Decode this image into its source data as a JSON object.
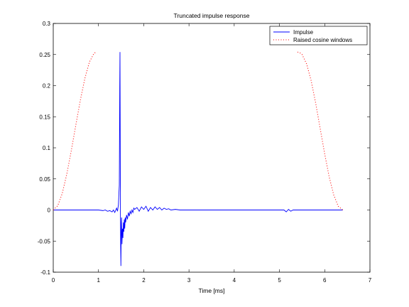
{
  "chart_data": {
    "type": "line",
    "title": "Truncated impulse response",
    "xlabel": "Time [ms]",
    "ylabel": "",
    "xlim": [
      0,
      7
    ],
    "ylim": [
      -0.1,
      0.3
    ],
    "xticks": [
      0,
      1,
      2,
      3,
      4,
      5,
      6,
      7
    ],
    "yticks": [
      -0.1,
      -0.05,
      0,
      0.05,
      0.1,
      0.15,
      0.2,
      0.25,
      0.3
    ],
    "xtick_labels": [
      "0",
      "1",
      "2",
      "3",
      "4",
      "5",
      "6",
      "7"
    ],
    "ytick_labels": [
      "-0.1",
      "-0.05",
      "0",
      "0.05",
      "0.1",
      "0.15",
      "0.2",
      "0.25",
      "0.3"
    ],
    "legend_position": "top-right",
    "series": [
      {
        "name": "Impulse",
        "color": "#0000ff",
        "style": "solid",
        "x": [
          0,
          1.0,
          1.1,
          1.15,
          1.2,
          1.25,
          1.3,
          1.33,
          1.36,
          1.4,
          1.42,
          1.44,
          1.46,
          1.47,
          1.475,
          1.48,
          1.485,
          1.49,
          1.495,
          1.5,
          1.505,
          1.51,
          1.515,
          1.52,
          1.53,
          1.54,
          1.55,
          1.56,
          1.57,
          1.58,
          1.59,
          1.6,
          1.62,
          1.64,
          1.66,
          1.68,
          1.7,
          1.72,
          1.74,
          1.76,
          1.78,
          1.8,
          1.85,
          1.9,
          1.95,
          2.0,
          2.05,
          2.1,
          2.15,
          2.2,
          2.25,
          2.3,
          2.35,
          2.4,
          2.45,
          2.5,
          2.55,
          2.6,
          2.7,
          2.8,
          2.9,
          3.0,
          5.1,
          5.15,
          5.2,
          5.25,
          5.3,
          6.4
        ],
        "y": [
          0,
          0,
          -0.001,
          0.0,
          -0.002,
          -0.001,
          -0.003,
          0.0,
          -0.004,
          0.003,
          -0.002,
          0.008,
          0.04,
          0.2,
          0.254,
          0.12,
          -0.02,
          -0.06,
          -0.09,
          -0.05,
          -0.02,
          -0.012,
          -0.035,
          -0.055,
          -0.03,
          -0.045,
          -0.02,
          -0.035,
          -0.015,
          -0.03,
          -0.012,
          -0.02,
          -0.008,
          -0.015,
          -0.004,
          -0.01,
          -0.002,
          -0.006,
          0.0,
          -0.004,
          0.003,
          0.001,
          0.004,
          -0.002,
          0.005,
          0.001,
          0.006,
          -0.002,
          0.004,
          0.0,
          0.005,
          0.001,
          0.004,
          0.0,
          0.003,
          0.001,
          0.002,
          0.0,
          0.001,
          0.0,
          0.0,
          0.0,
          0.0,
          -0.003,
          0.001,
          -0.002,
          0.0,
          0.0
        ]
      },
      {
        "name": "Raised cosine windows",
        "color": "#ff0000",
        "style": "dotted",
        "x": [
          0.0,
          0.1,
          0.2,
          0.3,
          0.4,
          0.5,
          0.6,
          0.7,
          0.8,
          0.9,
          0.95,
          5.4,
          5.45,
          5.5,
          5.6,
          5.7,
          5.8,
          5.9,
          6.0,
          6.1,
          6.2,
          6.3,
          6.4
        ],
        "y": [
          0.0,
          0.007,
          0.027,
          0.058,
          0.096,
          0.137,
          0.177,
          0.212,
          0.238,
          0.252,
          0.254,
          0.254,
          0.253,
          0.25,
          0.235,
          0.208,
          0.172,
          0.131,
          0.09,
          0.053,
          0.024,
          0.006,
          0.0
        ]
      }
    ]
  }
}
